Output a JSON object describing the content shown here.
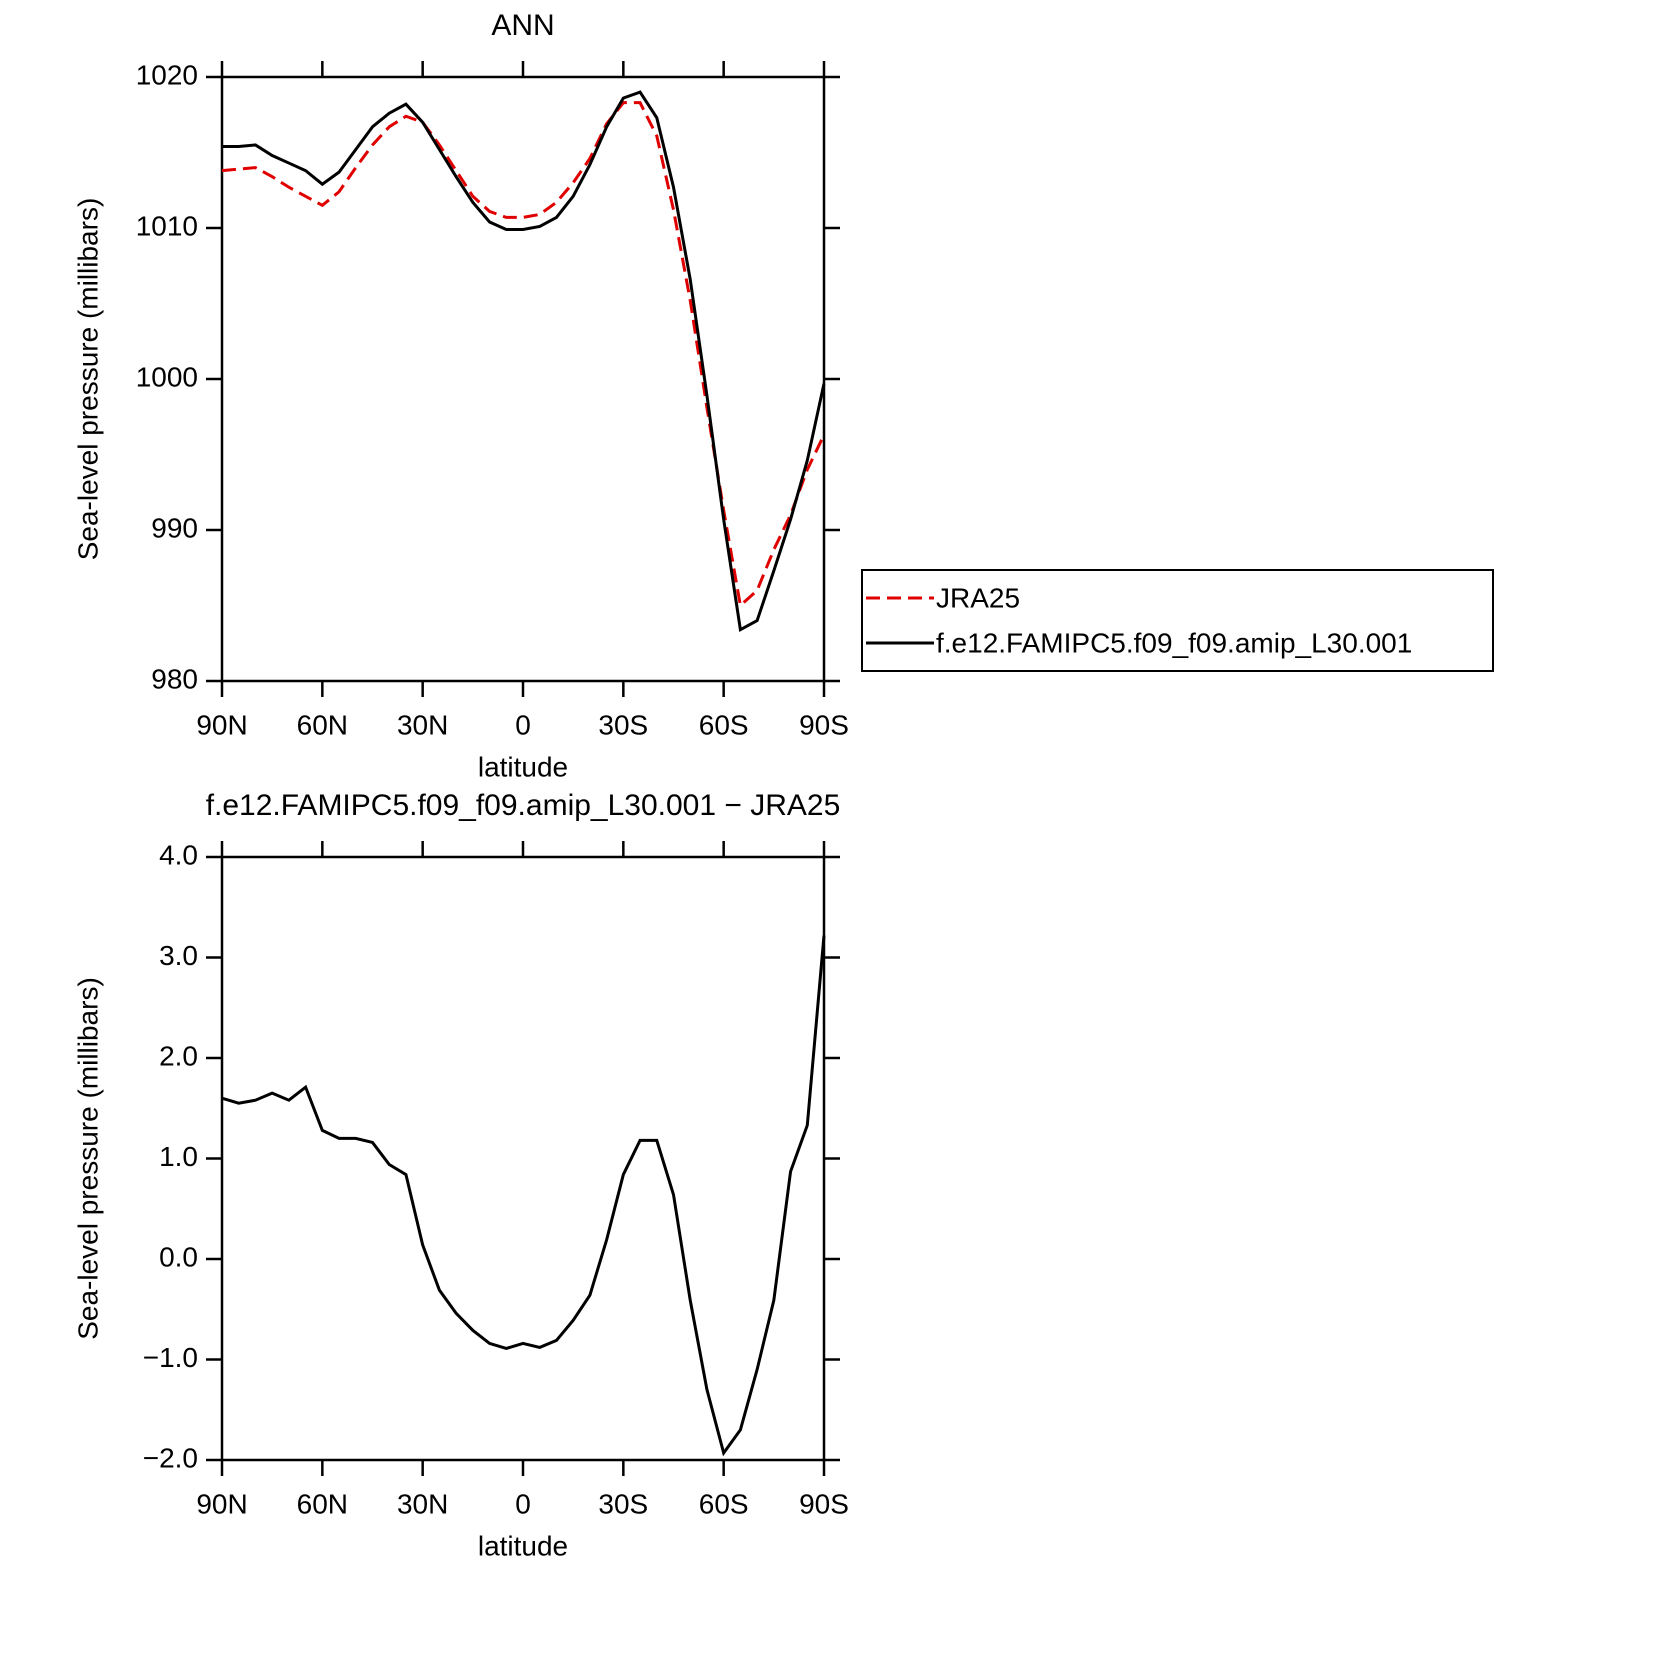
{
  "chart_data": [
    {
      "type": "line",
      "title": "ANN",
      "xlabel": "latitude",
      "ylabel": "Sea-level pressure (millibars)",
      "x": [
        90,
        85,
        80,
        75,
        70,
        65,
        60,
        55,
        50,
        45,
        40,
        35,
        30,
        25,
        20,
        15,
        10,
        5,
        0,
        -5,
        -10,
        -15,
        -20,
        -25,
        -30,
        -35,
        -40,
        -45,
        -50,
        -55,
        -60,
        -65,
        -70,
        -75,
        -80,
        -85,
        -90
      ],
      "series": [
        {
          "name": "JRA25",
          "color": "#e00000",
          "dash": true,
          "values": [
            1013.8,
            1013.9,
            1014.0,
            1013.4,
            1012.7,
            1012.1,
            1011.5,
            1012.4,
            1014.0,
            1015.5,
            1016.7,
            1017.4,
            1017.0,
            1015.5,
            1013.8,
            1012.1,
            1011.1,
            1010.7,
            1010.7,
            1010.9,
            1011.7,
            1013.0,
            1014.6,
            1016.9,
            1018.3,
            1018.3,
            1016.1,
            1011.2,
            1005.2,
            998.1,
            991.3,
            985.0,
            986.0,
            988.7,
            991.0,
            994.0,
            996.3
          ]
        },
        {
          "name": "f.e12.FAMIPC5.f09_f09.amip_L30.001",
          "color": "#000000",
          "dash": false,
          "values": [
            1015.4,
            1015.4,
            1015.5,
            1014.8,
            1014.3,
            1013.8,
            1012.9,
            1013.7,
            1015.2,
            1016.7,
            1017.6,
            1018.2,
            1017.0,
            1015.2,
            1013.4,
            1011.7,
            1010.4,
            1009.9,
            1009.9,
            1010.1,
            1010.7,
            1012.1,
            1014.2,
            1016.7,
            1018.6,
            1019.0,
            1017.3,
            1012.7,
            1006.6,
            998.9,
            990.7,
            983.4,
            984.0,
            987.3,
            990.7,
            994.6,
            999.7
          ]
        }
      ],
      "xlim": [
        90,
        -90
      ],
      "xticks": [
        {
          "value": 90,
          "label": "90N"
        },
        {
          "value": 60,
          "label": "60N"
        },
        {
          "value": 30,
          "label": "30N"
        },
        0,
        {
          "value": -30,
          "label": "30S"
        },
        {
          "value": -60,
          "label": "60S"
        },
        {
          "value": -90,
          "label": "90S"
        }
      ],
      "ylim": [
        980,
        1020
      ],
      "yticks": [
        980,
        990,
        1000,
        1010,
        1020
      ],
      "legend": "right"
    },
    {
      "type": "line",
      "title": "f.e12.FAMIPC5.f09_f09.amip_L30.001 − JRA25",
      "xlabel": "latitude",
      "ylabel": "Sea-level pressure (millibars)",
      "x": [
        90,
        85,
        80,
        75,
        70,
        65,
        60,
        55,
        50,
        45,
        40,
        35,
        30,
        25,
        20,
        15,
        10,
        5,
        0,
        -5,
        -10,
        -15,
        -20,
        -25,
        -30,
        -35,
        -40,
        -45,
        -50,
        -55,
        -60,
        -65,
        -70,
        -75,
        -80,
        -85,
        -90
      ],
      "series": [
        {
          "color": "#000000",
          "dash": false,
          "values": [
            1.6,
            1.55,
            1.58,
            1.65,
            1.58,
            1.71,
            1.28,
            1.2,
            1.2,
            1.16,
            0.94,
            0.84,
            0.14,
            -0.31,
            -0.54,
            -0.71,
            -0.84,
            -0.89,
            -0.84,
            -0.88,
            -0.81,
            -0.61,
            -0.36,
            0.19,
            0.84,
            1.18,
            1.18,
            0.64,
            -0.41,
            -1.3,
            -1.93,
            -1.7,
            -1.1,
            -0.41,
            0.87,
            1.33,
            3.22
          ]
        }
      ],
      "xlim": [
        90,
        -90
      ],
      "xticks": [
        {
          "value": 90,
          "label": "90N"
        },
        {
          "value": 60,
          "label": "60N"
        },
        {
          "value": 30,
          "label": "30N"
        },
        0,
        {
          "value": -30,
          "label": "30S"
        },
        {
          "value": -60,
          "label": "60S"
        },
        {
          "value": -90,
          "label": "90S"
        }
      ],
      "ylim": [
        -2,
        4
      ],
      "yticks": [
        {
          "value": -2,
          "label": "−2.0"
        },
        {
          "value": -1,
          "label": "−1.0"
        },
        {
          "value": 0,
          "label": "0.0"
        },
        {
          "value": 1,
          "label": "1.0"
        },
        {
          "value": 2,
          "label": "2.0"
        },
        {
          "value": 3,
          "label": "3.0"
        },
        {
          "value": 4,
          "label": "4.0"
        }
      ]
    }
  ]
}
